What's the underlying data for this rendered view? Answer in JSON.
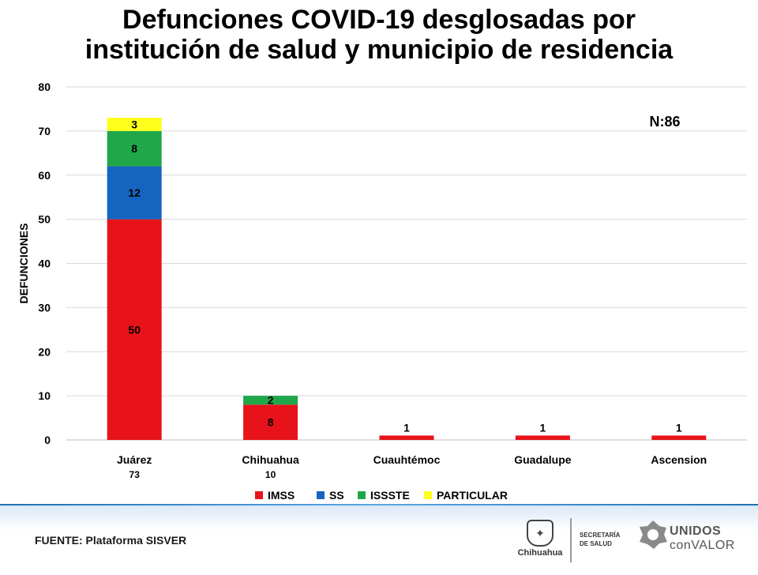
{
  "chart_data": {
    "type": "bar",
    "stacked": true,
    "title_line1": "Defunciones COVID-19 desglosadas por",
    "title_line2": "institución de salud y municipio de residencia",
    "ylabel": "DEFUNCIONES",
    "ylim": [
      0,
      80
    ],
    "yticks": [
      0,
      10,
      20,
      30,
      40,
      50,
      60,
      70,
      80
    ],
    "grid": true,
    "legend_position": "bottom",
    "annotation": "N:86",
    "categories": [
      "Juárez",
      "Chihuahua",
      "Cuauhtémoc",
      "Guadalupe",
      "Ascension"
    ],
    "category_totals": [
      "73",
      "10",
      "",
      "",
      ""
    ],
    "series": [
      {
        "name": "IMSS",
        "color": "#e8131a",
        "values": [
          50,
          8,
          1,
          1,
          1
        ]
      },
      {
        "name": "SS",
        "color": "#1565c0",
        "values": [
          12,
          0,
          0,
          0,
          0
        ]
      },
      {
        "name": "ISSSTE",
        "color": "#1fa74a",
        "values": [
          8,
          2,
          0,
          0,
          0
        ]
      },
      {
        "name": "PARTICULAR",
        "color": "#ffff1a",
        "values": [
          3,
          0,
          0,
          0,
          0
        ]
      }
    ]
  },
  "footer": {
    "source": "FUENTE: Plataforma SISVER",
    "logo_chihuahua": "Chihuahua",
    "logo_secretaria_l1": "SECRETARÍA",
    "logo_secretaria_l2": "DE SALUD",
    "logo_unidos_l1": "UNIDOS",
    "logo_unidos_l2": "conVALOR"
  }
}
